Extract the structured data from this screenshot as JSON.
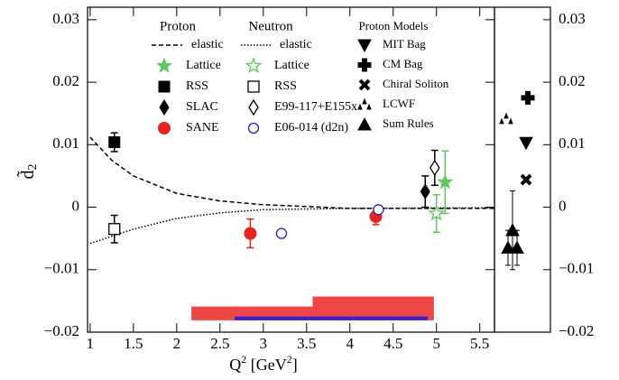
{
  "chart_data": {
    "type": "scatter",
    "y_label": {
      "base": "d̃",
      "sub": "2"
    },
    "x_label": {
      "parts": [
        "Q",
        "2",
        " [GeV",
        "2",
        "]"
      ]
    },
    "xlim": [
      0.97,
      5.67
    ],
    "xticks": [
      1,
      1.5,
      2,
      2.5,
      3,
      3.5,
      4,
      4.5,
      5,
      5.5
    ],
    "ylim": [
      -0.02,
      0.032
    ],
    "yticks": [
      {
        "value": -0.02,
        "label": "−0.02"
      },
      {
        "value": -0.01,
        "label": "−0.01"
      },
      0,
      0.01,
      0.02,
      0.03
    ],
    "y2lim": [
      -0.02,
      0.032
    ],
    "y2ticks": [
      {
        "value": -0.02,
        "label": "−0.02"
      },
      {
        "value": -0.01,
        "label": "−0.01"
      },
      0,
      0.01,
      0.02,
      0.03
    ],
    "legend_titles": [
      "Proton",
      "Neutron"
    ],
    "series": [
      {
        "name": "elastic",
        "marker": "dashed",
        "color": "#000000",
        "x": [
          1.0,
          1.25,
          1.5,
          2.0,
          2.5,
          3.0,
          3.5,
          4.0,
          5.67
        ],
        "values": [
          0.0112,
          0.0075,
          0.005,
          0.0022,
          0.001,
          0.0004,
          0.0001,
          -0.0002,
          -0.0002
        ]
      },
      {
        "name": "Lattice",
        "marker": "star",
        "color": "#5ec85e",
        "x": [
          5.1
        ],
        "values": [
          0.004
        ],
        "errors": [
          0.005
        ]
      },
      {
        "name": "RSS",
        "marker": "square",
        "color": "#000000",
        "x": [
          1.28
        ],
        "values": [
          0.0104
        ],
        "errors": [
          0.0015
        ]
      },
      {
        "name": "SLAC",
        "marker": "diamond",
        "color": "#000000",
        "x": [
          4.87
        ],
        "values": [
          0.0025
        ],
        "errors": [
          0.0025
        ]
      },
      {
        "name": "SANE",
        "marker": "circle",
        "color": "#e8221e",
        "x": [
          2.85,
          4.3
        ],
        "values": [
          -0.0042,
          -0.0015
        ],
        "errors": [
          0.0023,
          0.0013
        ]
      },
      {
        "name": "elastic",
        "marker": "dotted",
        "color": "#000000",
        "x": [
          1.0,
          1.5,
          2.0,
          2.5,
          3.0,
          4.0,
          5.67
        ],
        "values": [
          -0.0058,
          -0.0035,
          -0.0018,
          -0.0009,
          -0.0004,
          -0.0002,
          -0.0001
        ]
      },
      {
        "name": "Lattice",
        "marker": "star-open",
        "color": "#5ec85e",
        "x": [
          5.0
        ],
        "values": [
          -0.001
        ],
        "errors": [
          0.003
        ]
      },
      {
        "name": "RSS",
        "marker": "square-open",
        "color": "#000000",
        "x": [
          1.28
        ],
        "values": [
          -0.0035
        ],
        "errors": [
          0.0022
        ]
      },
      {
        "name": "E99-117+E155x",
        "marker": "diamond-open",
        "color": "#000000",
        "x": [
          4.98
        ],
        "values": [
          0.0063
        ],
        "errors": [
          0.0028
        ]
      },
      {
        "name": "E06-014 (d2n)",
        "marker": "circle-open",
        "color": "#2222cc",
        "x": [
          3.21,
          4.33
        ],
        "values": [
          -0.0042,
          -0.0004
        ],
        "errors": [
          0.0004,
          0.0005
        ]
      }
    ],
    "bands": [
      {
        "x": [
          2.17,
          3.57
        ],
        "y": [
          -0.0181,
          -0.0159
        ],
        "color": "#f04545"
      },
      {
        "x": [
          3.57,
          4.97
        ],
        "y": [
          -0.0181,
          -0.0143
        ],
        "color": "#f04545"
      },
      {
        "x": [
          2.67,
          4.9
        ],
        "y": [
          -0.0181,
          -0.0175
        ],
        "color": "#3a1fd8"
      }
    ],
    "models": {
      "title": "Proton Models",
      "series": [
        {
          "name": "MIT Bag",
          "marker": "triangle-down",
          "values": [
            0.0103
          ]
        },
        {
          "name": "CM Bag",
          "marker": "plus",
          "values": [
            0.0175
          ]
        },
        {
          "name": "Chiral Soliton",
          "marker": "cross",
          "values": [
            0.0044
          ]
        },
        {
          "name": "LCWF",
          "marker": "triangle-pair",
          "values": [
            0.0141
          ]
        },
        {
          "name": "Sum Rules",
          "marker": "triangle",
          "values": [
            -0.0065,
            -0.0065,
            -0.0037
          ],
          "errors": [
            0.0028,
            0.0028,
            0.0063
          ]
        }
      ]
    }
  }
}
